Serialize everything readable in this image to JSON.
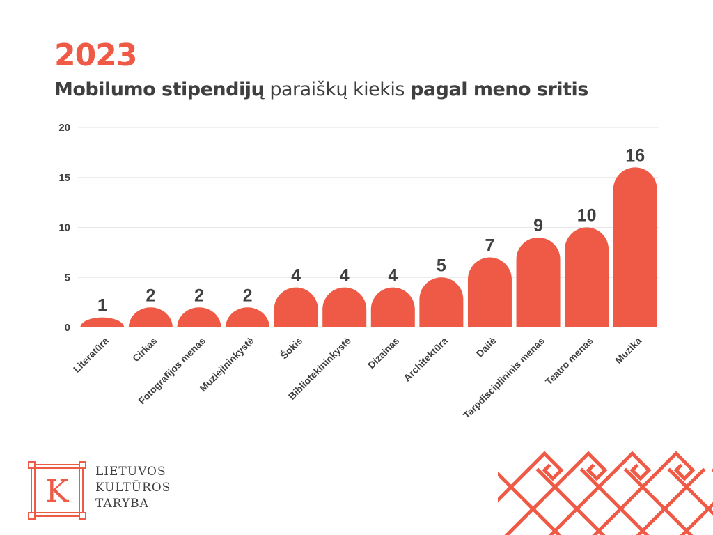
{
  "header": {
    "year": "2023",
    "title_part1": "Mobilumo stipendijų",
    "title_part2": "paraiškų kiekis",
    "title_part3": "pagal meno sritis"
  },
  "chart_data": {
    "type": "bar",
    "categories": [
      "Literatūra",
      "Cirkas",
      "Fotografijos menas",
      "Muziejininkystė",
      "Šokis",
      "Bibliotekininkystė",
      "Dizainas",
      "Architektūra",
      "Dailė",
      "Tarpdisciplininis menas",
      "Teatro menas",
      "Muzika"
    ],
    "values": [
      1,
      2,
      2,
      2,
      4,
      4,
      4,
      5,
      7,
      9,
      10,
      16
    ],
    "ylim": [
      0,
      20
    ],
    "yticks": [
      0,
      5,
      10,
      15,
      20
    ],
    "grid": true,
    "bar_color": "#ee5a45",
    "data_labels": true
  },
  "logo": {
    "letter": "K",
    "line1": "LIETUVOS",
    "line2": "KULTŪROS",
    "line3": "TARYBA"
  },
  "colors": {
    "accent": "#ee5a45",
    "text": "#3f3f3f",
    "grid": "#e6e6e6"
  }
}
